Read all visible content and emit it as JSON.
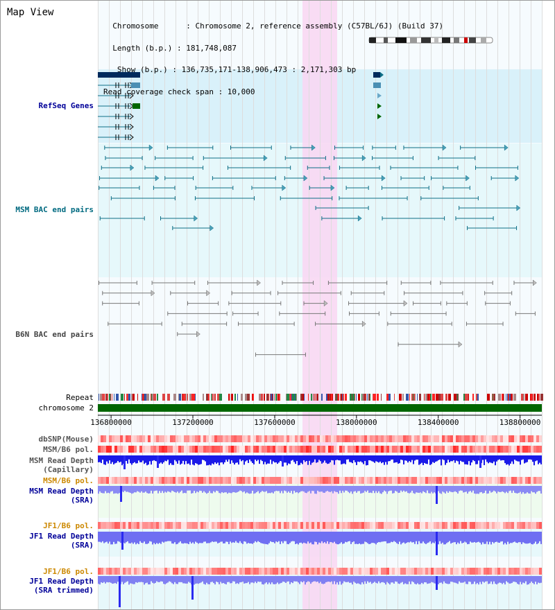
{
  "header": {
    "title": "Map View",
    "info_lines": [
      "  Chromosome      : Chromosome 2, reference assembly (C57BL/6J) (Build 37)",
      "  Length (b.p.) : 181,748,087",
      "   Show (b.p.) : 136,735,171-138,906,473 : 2,171,303 bp",
      "Read coverage check span : 10,000"
    ]
  },
  "colors": {
    "refseq_band": "#d9f1fa",
    "msm_bac_band": "#e6f8fb",
    "highlight": "#f9d6f2",
    "msm_bac_line": "#0e6e86",
    "b6n_bac_line": "#777777",
    "chromosome_bar": "#006600",
    "refseq_label": "#000099",
    "msm_bac_label": "#006a80",
    "b6n_label": "#444444",
    "pol_label": "#cc8800",
    "depth_label": "#000099",
    "depth_bar": "#0000ff",
    "depth_light": "#8080ff"
  },
  "tracks": {
    "refseq": "RefSeq Genes",
    "msm_bac": "MSM BAC end pairs",
    "b6n_bac": "B6N BAC end pairs",
    "repeat": "Repeat",
    "chromosome": "chromosome 2",
    "dbsnp": "dbSNP(Mouse)",
    "msm_b6_pol": "MSM/B6 pol.",
    "msm_depth_cap_1": "MSM Read Depth",
    "msm_depth_cap_2": "(Capillary)",
    "msm_b6_pol_2": "MSM/B6 pol.",
    "msm_depth_sra_1": "MSM Read Depth",
    "msm_depth_sra_2": "(SRA)",
    "jf1_b6_pol": "JF1/B6 pol.",
    "jf1_depth_sra_1": "JF1 Read Depth",
    "jf1_depth_sra_2": "(SRA)",
    "jf1_b6_pol_2": "JF1/B6 pol.",
    "jf1_depth_trim_1": "JF1 Read Depth",
    "jf1_depth_trim_2": "(SRA trimmed)"
  },
  "axis": {
    "ticks": [
      "136800000",
      "137200000",
      "137600000",
      "138000000",
      "138400000",
      "138800000"
    ],
    "tick_values": [
      136800000,
      137200000,
      137600000,
      138000000,
      138400000,
      138800000
    ],
    "range_bp": [
      136735171,
      138906473
    ]
  }
}
